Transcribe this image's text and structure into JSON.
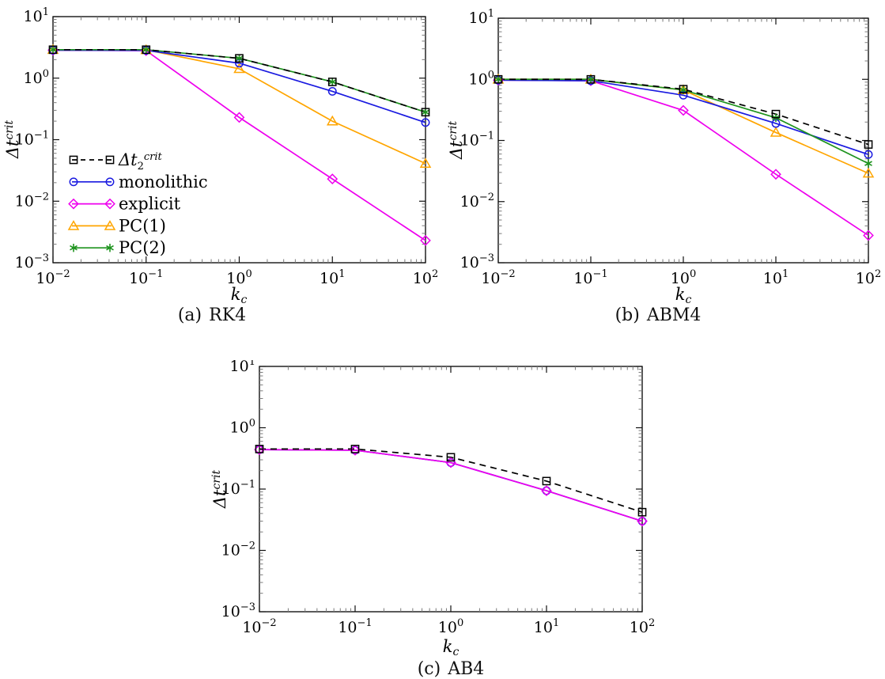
{
  "figure": {
    "background": "#ffffff",
    "captions": [
      {
        "index": "(a)",
        "title": "RK4"
      },
      {
        "index": "(b)",
        "title": "ABM4"
      },
      {
        "index": "(c)",
        "title": "AB4"
      }
    ],
    "axis_labels": {
      "x_base": "k",
      "x_sub": "c",
      "y_base": "Δt",
      "y_sup": "crit"
    },
    "tick_labels": {
      "mantissa": "10",
      "x_exponents": [
        -2,
        -1,
        0,
        1,
        2
      ],
      "y_exponents": [
        1,
        0,
        -1,
        -2,
        -3
      ]
    },
    "legend": {
      "entries": [
        {
          "key": "dt2crit",
          "base": "Δt",
          "sub": "2",
          "sup": "crit",
          "color": "#000000",
          "marker": "square",
          "dash": true
        },
        {
          "key": "monolithic",
          "label": "monolithic",
          "color": "#1a1ae0",
          "marker": "circle",
          "dash": false
        },
        {
          "key": "explicit",
          "label": "explicit",
          "color": "#ee00ee",
          "marker": "diamond",
          "dash": false
        },
        {
          "key": "pc1",
          "label": "PC(1)",
          "color": "#ffa500",
          "marker": "triangle",
          "dash": false
        },
        {
          "key": "pc2",
          "label": "PC(2)",
          "color": "#1f941f",
          "marker": "asterisk",
          "dash": false
        }
      ]
    },
    "colors": {
      "dt2crit": "#000000",
      "monolithic": "#1a1ae0",
      "explicit": "#ee00ee",
      "pc1": "#ffa500",
      "pc2": "#1f941f"
    }
  },
  "chart_data": [
    {
      "type": "line",
      "id": "rk4",
      "caption": "(a) RK4",
      "xlabel": "k_c",
      "ylabel": "Δt^crit",
      "xscale": "log",
      "yscale": "log",
      "xlim": [
        0.01,
        100
      ],
      "ylim": [
        0.001,
        10
      ],
      "grid": false,
      "legend_position": "inside-lower-left",
      "x": [
        0.01,
        0.1,
        1,
        10,
        100
      ],
      "series": [
        {
          "name": "explicit",
          "color": "#ee00ee",
          "marker": "diamond",
          "dash": false,
          "values": [
            2.85,
            2.8,
            0.23,
            0.023,
            0.0023
          ]
        },
        {
          "name": "PC(1)",
          "color": "#ffa500",
          "marker": "triangle",
          "dash": false,
          "values": [
            2.9,
            2.88,
            1.42,
            0.2,
            0.041
          ]
        },
        {
          "name": "monolithic",
          "color": "#1a1ae0",
          "marker": "circle",
          "dash": false,
          "values": [
            2.85,
            2.83,
            1.75,
            0.61,
            0.19
          ]
        },
        {
          "name": "PC(2)",
          "color": "#1f941f",
          "marker": "asterisk",
          "dash": false,
          "values": [
            2.9,
            2.9,
            2.1,
            0.87,
            0.28
          ]
        },
        {
          "name": "dt2crit",
          "color": "#000000",
          "marker": "square",
          "dash": true,
          "values": [
            2.9,
            2.9,
            2.1,
            0.87,
            0.28
          ]
        }
      ]
    },
    {
      "type": "line",
      "id": "abm4",
      "caption": "(b) ABM4",
      "xlabel": "k_c",
      "ylabel": "Δt^crit",
      "xscale": "log",
      "yscale": "log",
      "xlim": [
        0.01,
        100
      ],
      "ylim": [
        0.001,
        10
      ],
      "grid": false,
      "legend_position": "none",
      "x": [
        0.01,
        0.1,
        1,
        10,
        100
      ],
      "series": [
        {
          "name": "explicit",
          "color": "#ee00ee",
          "marker": "diamond",
          "dash": false,
          "values": [
            0.97,
            0.95,
            0.31,
            0.028,
            0.0028
          ]
        },
        {
          "name": "PC(1)",
          "color": "#ffa500",
          "marker": "triangle",
          "dash": false,
          "values": [
            1.0,
            1.0,
            0.67,
            0.135,
            0.029
          ]
        },
        {
          "name": "monolithic",
          "color": "#1a1ae0",
          "marker": "circle",
          "dash": false,
          "values": [
            0.97,
            0.95,
            0.55,
            0.19,
            0.059
          ]
        },
        {
          "name": "PC(2)",
          "color": "#1f941f",
          "marker": "asterisk",
          "dash": false,
          "values": [
            1.0,
            1.0,
            0.67,
            0.235,
            0.042
          ]
        },
        {
          "name": "dt2crit",
          "color": "#000000",
          "marker": "square",
          "dash": true,
          "values": [
            1.0,
            1.0,
            0.69,
            0.27,
            0.086
          ]
        }
      ]
    },
    {
      "type": "line",
      "id": "ab4",
      "caption": "(c) AB4",
      "xlabel": "k_c",
      "ylabel": "Δt^crit",
      "xscale": "log",
      "yscale": "log",
      "xlim": [
        0.01,
        100
      ],
      "ylim": [
        0.001,
        10
      ],
      "grid": false,
      "legend_position": "none",
      "x": [
        0.01,
        0.1,
        1,
        10,
        100
      ],
      "series": [
        {
          "name": "monolithic",
          "color": "#1a1ae0",
          "marker": "circle",
          "dash": false,
          "values": [
            0.44,
            0.43,
            0.27,
            0.094,
            0.03
          ]
        },
        {
          "name": "explicit",
          "color": "#ee00ee",
          "marker": "diamond",
          "dash": false,
          "values": [
            0.44,
            0.43,
            0.27,
            0.094,
            0.03
          ]
        },
        {
          "name": "dt2crit",
          "color": "#000000",
          "marker": "square",
          "dash": true,
          "values": [
            0.45,
            0.45,
            0.33,
            0.135,
            0.042
          ]
        }
      ]
    }
  ]
}
